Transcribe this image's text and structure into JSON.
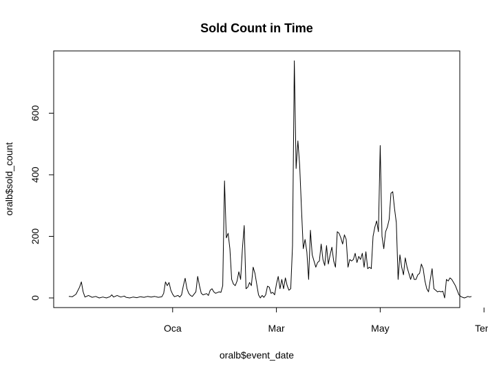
{
  "chart_data": {
    "type": "line",
    "title": "Sold Count in Time",
    "xlabel": "oralb$event_date",
    "ylabel": "oralb$sold_count",
    "ylim": [
      0,
      760
    ],
    "y_ticks": [
      0,
      200,
      400,
      600
    ],
    "x_ticks": [
      {
        "label": "Oca",
        "x": 58
      },
      {
        "label": "Mar",
        "x": 116
      },
      {
        "label": "May",
        "x": 174
      },
      {
        "label": "Tem",
        "x": 232
      }
    ],
    "grid": false,
    "legend": "none",
    "series": [
      {
        "color": "#000000",
        "points": [
          [
            0,
            5
          ],
          [
            2,
            4
          ],
          [
            4,
            12
          ],
          [
            6,
            35
          ],
          [
            7,
            52
          ],
          [
            8,
            20
          ],
          [
            9,
            3
          ],
          [
            11,
            8
          ],
          [
            13,
            2
          ],
          [
            15,
            5
          ],
          [
            17,
            0
          ],
          [
            19,
            3
          ],
          [
            21,
            0
          ],
          [
            23,
            4
          ],
          [
            24,
            10
          ],
          [
            25,
            3
          ],
          [
            27,
            8
          ],
          [
            29,
            3
          ],
          [
            31,
            6
          ],
          [
            32,
            2
          ],
          [
            34,
            0
          ],
          [
            36,
            3
          ],
          [
            38,
            1
          ],
          [
            40,
            4
          ],
          [
            42,
            2
          ],
          [
            44,
            5
          ],
          [
            46,
            3
          ],
          [
            48,
            5
          ],
          [
            50,
            2
          ],
          [
            52,
            4
          ],
          [
            53,
            15
          ],
          [
            54,
            52
          ],
          [
            55,
            40
          ],
          [
            56,
            50
          ],
          [
            57,
            25
          ],
          [
            58,
            12
          ],
          [
            59,
            4
          ],
          [
            61,
            8
          ],
          [
            62,
            3
          ],
          [
            63,
            10
          ],
          [
            64,
            40
          ],
          [
            65,
            64
          ],
          [
            66,
            30
          ],
          [
            67,
            15
          ],
          [
            68,
            8
          ],
          [
            69,
            5
          ],
          [
            71,
            20
          ],
          [
            72,
            70
          ],
          [
            73,
            40
          ],
          [
            74,
            15
          ],
          [
            75,
            10
          ],
          [
            77,
            14
          ],
          [
            78,
            8
          ],
          [
            79,
            25
          ],
          [
            80,
            30
          ],
          [
            81,
            20
          ],
          [
            82,
            15
          ],
          [
            84,
            20
          ],
          [
            85,
            18
          ],
          [
            86,
            40
          ],
          [
            87,
            380
          ],
          [
            88,
            195
          ],
          [
            89,
            210
          ],
          [
            90,
            160
          ],
          [
            91,
            60
          ],
          [
            92,
            45
          ],
          [
            93,
            40
          ],
          [
            94,
            55
          ],
          [
            95,
            85
          ],
          [
            96,
            60
          ],
          [
            97,
            160
          ],
          [
            98,
            235
          ],
          [
            99,
            30
          ],
          [
            100,
            35
          ],
          [
            101,
            50
          ],
          [
            102,
            40
          ],
          [
            103,
            100
          ],
          [
            104,
            80
          ],
          [
            105,
            45
          ],
          [
            106,
            10
          ],
          [
            107,
            0
          ],
          [
            108,
            8
          ],
          [
            109,
            2
          ],
          [
            110,
            10
          ],
          [
            111,
            38
          ],
          [
            112,
            35
          ],
          [
            113,
            15
          ],
          [
            114,
            18
          ],
          [
            115,
            10
          ],
          [
            116,
            45
          ],
          [
            117,
            70
          ],
          [
            118,
            30
          ],
          [
            119,
            60
          ],
          [
            120,
            30
          ],
          [
            121,
            65
          ],
          [
            122,
            40
          ],
          [
            123,
            25
          ],
          [
            124,
            30
          ],
          [
            125,
            170
          ],
          [
            126,
            770
          ],
          [
            127,
            420
          ],
          [
            128,
            510
          ],
          [
            129,
            430
          ],
          [
            130,
            290
          ],
          [
            131,
            160
          ],
          [
            132,
            190
          ],
          [
            133,
            150
          ],
          [
            134,
            60
          ],
          [
            135,
            220
          ],
          [
            136,
            140
          ],
          [
            137,
            120
          ],
          [
            138,
            100
          ],
          [
            139,
            115
          ],
          [
            140,
            120
          ],
          [
            141,
            175
          ],
          [
            142,
            125
          ],
          [
            143,
            105
          ],
          [
            144,
            170
          ],
          [
            145,
            110
          ],
          [
            146,
            140
          ],
          [
            147,
            165
          ],
          [
            148,
            120
          ],
          [
            149,
            100
          ],
          [
            150,
            215
          ],
          [
            151,
            210
          ],
          [
            152,
            195
          ],
          [
            153,
            175
          ],
          [
            154,
            205
          ],
          [
            155,
            190
          ],
          [
            156,
            100
          ],
          [
            157,
            125
          ],
          [
            158,
            120
          ],
          [
            159,
            125
          ],
          [
            160,
            145
          ],
          [
            161,
            115
          ],
          [
            162,
            135
          ],
          [
            163,
            125
          ],
          [
            164,
            145
          ],
          [
            165,
            100
          ],
          [
            166,
            150
          ],
          [
            167,
            95
          ],
          [
            168,
            100
          ],
          [
            169,
            95
          ],
          [
            170,
            200
          ],
          [
            171,
            230
          ],
          [
            172,
            250
          ],
          [
            173,
            215
          ],
          [
            174,
            495
          ],
          [
            175,
            200
          ],
          [
            176,
            160
          ],
          [
            177,
            215
          ],
          [
            178,
            230
          ],
          [
            179,
            255
          ],
          [
            180,
            340
          ],
          [
            181,
            345
          ],
          [
            182,
            290
          ],
          [
            183,
            245
          ],
          [
            184,
            60
          ],
          [
            185,
            140
          ],
          [
            186,
            100
          ],
          [
            187,
            75
          ],
          [
            188,
            130
          ],
          [
            189,
            100
          ],
          [
            190,
            80
          ],
          [
            191,
            60
          ],
          [
            192,
            80
          ],
          [
            193,
            60
          ],
          [
            194,
            60
          ],
          [
            195,
            75
          ],
          [
            196,
            80
          ],
          [
            197,
            110
          ],
          [
            198,
            95
          ],
          [
            199,
            55
          ],
          [
            200,
            30
          ],
          [
            201,
            20
          ],
          [
            202,
            60
          ],
          [
            203,
            95
          ],
          [
            204,
            30
          ],
          [
            205,
            25
          ],
          [
            206,
            20
          ],
          [
            207,
            22
          ],
          [
            208,
            20
          ],
          [
            209,
            22
          ],
          [
            210,
            0
          ],
          [
            211,
            60
          ],
          [
            212,
            55
          ],
          [
            213,
            65
          ],
          [
            214,
            60
          ],
          [
            215,
            50
          ],
          [
            216,
            40
          ],
          [
            217,
            25
          ],
          [
            218,
            10
          ],
          [
            219,
            5
          ],
          [
            220,
            2
          ],
          [
            221,
            0
          ],
          [
            222,
            2
          ],
          [
            223,
            5
          ],
          [
            224,
            3
          ],
          [
            225,
            5
          ]
        ]
      }
    ]
  }
}
